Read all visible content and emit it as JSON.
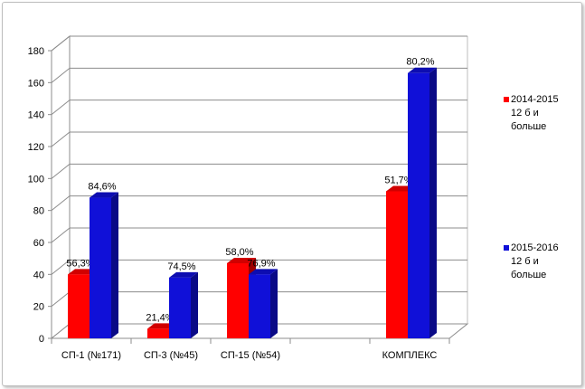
{
  "chart_data": {
    "type": "bar",
    "categories": [
      "СП-1 (№171)",
      "СП-3 (№45)",
      "СП-15 (№54)",
      "",
      "КОМПЛЕКС"
    ],
    "series": [
      {
        "name": "2014-2015 12 б и больше",
        "color": "#ff0000",
        "values": [
          40,
          6,
          47,
          null,
          92
        ],
        "labels": [
          "56,3%",
          "21,4%",
          "58,0%",
          "",
          "51,7%"
        ]
      },
      {
        "name": "2015-2016 12 б и больше",
        "color": "#1010d8",
        "values": [
          88,
          38,
          40,
          null,
          166
        ],
        "labels": [
          "84,6%",
          "74,5%",
          "76,9%",
          "",
          "80,2%"
        ]
      }
    ],
    "yticks": [
      0,
      20,
      40,
      60,
      80,
      100,
      120,
      140,
      160,
      180
    ],
    "ylim": [
      0,
      180
    ],
    "grid": true,
    "legend_position": "right",
    "title": "",
    "xlabel": "",
    "ylabel": ""
  },
  "legend": {
    "series_1": {
      "line1": "2014-2015",
      "line2": "12 б и",
      "line3": "больше"
    },
    "series_2": {
      "line1": "2015-2016",
      "line2": "12 б и",
      "line3": "больше"
    }
  }
}
